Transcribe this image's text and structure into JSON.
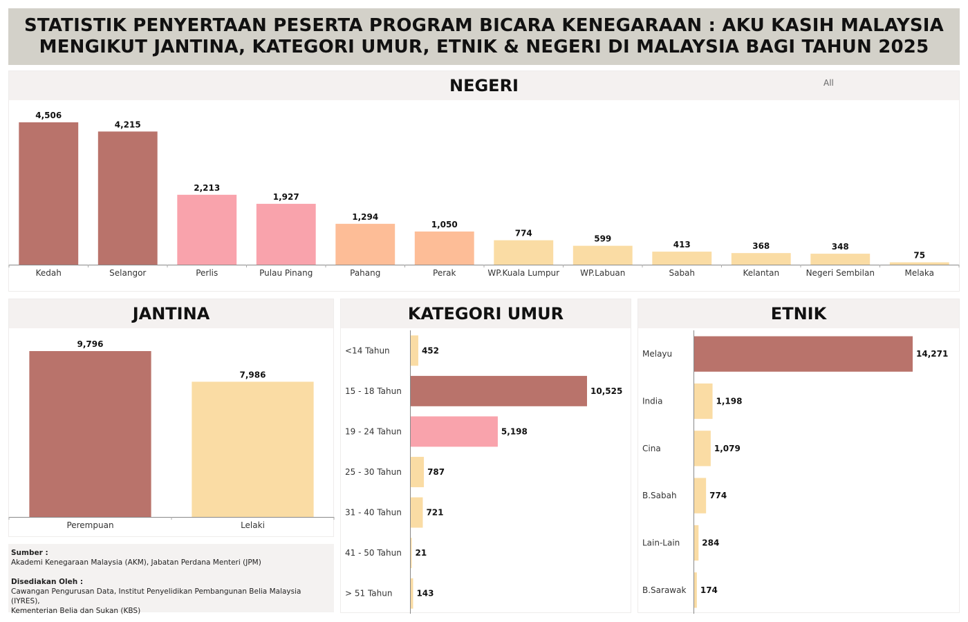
{
  "title": {
    "line1": "STATISTIK PENYERTAAN PESERTA PROGRAM BICARA KENEGARAAN : AKU KASIH MALAYSIA",
    "line2": "MENGIKUT JANTINA, KATEGORI UMUR, ETNIK & NEGERI DI MALAYSIA BAGI TAHUN 2025"
  },
  "filter": {
    "label": "All"
  },
  "palette": {
    "dark": "#b9736b",
    "pink": "#f9a3ac",
    "peach": "#fdbd97",
    "light": "#fadca4"
  },
  "chart_data": [
    {
      "id": "negeri",
      "type": "bar",
      "title": "NEGERI",
      "categories": [
        "Kedah",
        "Selangor",
        "Perlis",
        "Pulau Pinang",
        "Pahang",
        "Perak",
        "WP.Kuala Lumpur",
        "WP.Labuan",
        "Sabah",
        "Kelantan",
        "Negeri Sembilan",
        "Melaka"
      ],
      "values": [
        4506,
        4215,
        2213,
        1927,
        1294,
        1050,
        774,
        599,
        413,
        368,
        348,
        75
      ],
      "value_labels": [
        "4,506",
        "4,215",
        "2,213",
        "1,927",
        "1,294",
        "1,050",
        "774",
        "599",
        "413",
        "368",
        "348",
        "75"
      ],
      "colors": [
        "dark",
        "dark",
        "pink",
        "pink",
        "peach",
        "peach",
        "light",
        "light",
        "light",
        "light",
        "light",
        "light"
      ]
    },
    {
      "id": "jantina",
      "type": "bar",
      "title": "JANTINA",
      "categories": [
        "Perempuan",
        "Lelaki"
      ],
      "values": [
        9796,
        7986
      ],
      "value_labels": [
        "9,796",
        "7,986"
      ],
      "colors": [
        "dark",
        "light"
      ]
    },
    {
      "id": "umur",
      "type": "bar",
      "orientation": "horizontal",
      "title": "KATEGORI UMUR",
      "categories": [
        "<14 Tahun",
        "15 - 18 Tahun",
        "19 - 24 Tahun",
        "25 - 30 Tahun",
        "31 - 40 Tahun",
        "41 - 50 Tahun",
        "> 51 Tahun"
      ],
      "values": [
        452,
        10525,
        5198,
        787,
        721,
        21,
        143
      ],
      "value_labels": [
        "452",
        "10,525",
        "5,198",
        "787",
        "721",
        "21",
        "143"
      ],
      "colors": [
        "light",
        "dark",
        "pink",
        "light",
        "light",
        "light",
        "light"
      ]
    },
    {
      "id": "etnik",
      "type": "bar",
      "orientation": "horizontal",
      "title": "ETNIK",
      "categories": [
        "Melayu",
        "India",
        "Cina",
        "B.Sabah",
        "Lain-Lain",
        "B.Sarawak"
      ],
      "values": [
        14271,
        1198,
        1079,
        774,
        284,
        174
      ],
      "value_labels": [
        "14,271",
        "1,198",
        "1,079",
        "774",
        "284",
        "174"
      ],
      "colors": [
        "dark",
        "light",
        "light",
        "light",
        "light",
        "light"
      ]
    }
  ],
  "source": {
    "heading1": "Sumber :",
    "text1": "Akademi Kenegaraan Malaysia (AKM), Jabatan Perdana Menteri (JPM)",
    "heading2": "Disediakan Oleh :",
    "text2a": "Cawangan Pengurusan Data, Institut Penyelidikan Pembangunan Belia Malaysia (IYRES),",
    "text2b": "Kementerian Belia dan Sukan (KBS)"
  }
}
